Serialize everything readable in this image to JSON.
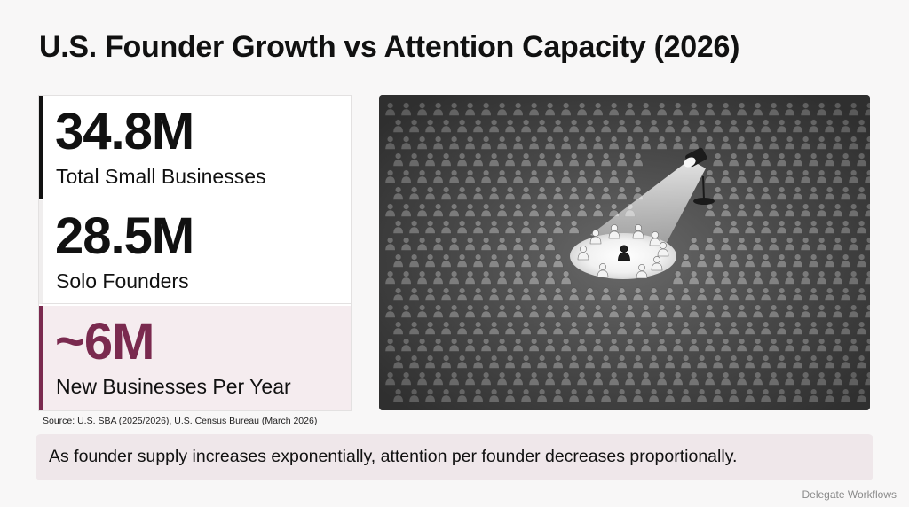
{
  "title": "U.S. Founder Growth vs Attention Capacity (2026)",
  "stats": [
    {
      "value": "34.8M",
      "label": "Total Small Businesses"
    },
    {
      "value": "28.5M",
      "label": "Solo Founders"
    },
    {
      "value": "~6M",
      "label": "New Businesses Per Year"
    }
  ],
  "source": "Source: U.S. SBA (2025/2026), U.S. Census Bureau (March 2026)",
  "callout": "As founder supply increases exponentially, attention per founder decreases proportionally.",
  "brand": "Delegate Workflows",
  "colors": {
    "accent": "#7a2a4f",
    "accent_bg": "#f5ecef",
    "callout_bg": "#efe7ea",
    "crowd_dark": "#3a3a3a"
  },
  "illustration": {
    "subject": "crowd-of-people-with-spotlight-on-single-founder"
  }
}
